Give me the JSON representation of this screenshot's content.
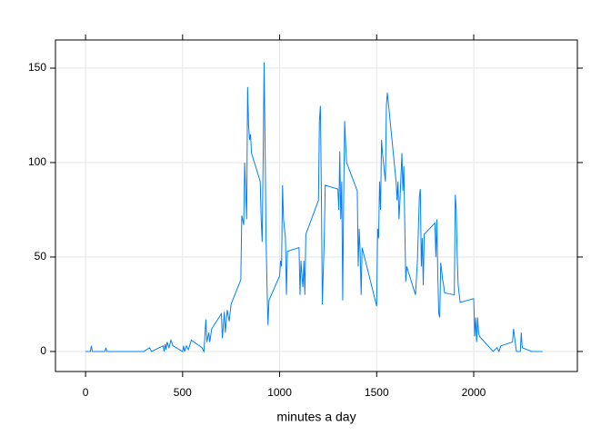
{
  "chart_data": {
    "type": "line",
    "xlabel": "minutes a day",
    "color": "#0080ff",
    "grid": true,
    "xlim": [
      -155,
      2534
    ],
    "ylim": [
      -10.6,
      164.9
    ],
    "xticks": [
      0,
      500,
      1000,
      1500,
      2000
    ],
    "yticks": [
      0,
      50,
      100,
      150
    ],
    "x": [
      0,
      25,
      30,
      35,
      100,
      105,
      110,
      150,
      200,
      300,
      330,
      340,
      400,
      405,
      410,
      415,
      420,
      430,
      440,
      450,
      500,
      505,
      510,
      520,
      530,
      545,
      600,
      610,
      620,
      625,
      635,
      640,
      650,
      700,
      705,
      715,
      720,
      730,
      740,
      750,
      800,
      805,
      815,
      820,
      830,
      835,
      840,
      845,
      850,
      855,
      900,
      905,
      910,
      915,
      920,
      925,
      930,
      935,
      940,
      945,
      1000,
      1005,
      1010,
      1015,
      1020,
      1030,
      1035,
      1040,
      1100,
      1105,
      1110,
      1115,
      1120,
      1125,
      1130,
      1135,
      1200,
      1205,
      1210,
      1215,
      1220,
      1230,
      1235,
      1300,
      1305,
      1310,
      1315,
      1320,
      1325,
      1330,
      1335,
      1340,
      1345,
      1400,
      1405,
      1410,
      1415,
      1420,
      1425,
      1500,
      1505,
      1510,
      1515,
      1520,
      1525,
      1530,
      1545,
      1550,
      1555,
      1600,
      1605,
      1610,
      1615,
      1620,
      1630,
      1635,
      1640,
      1645,
      1650,
      1655,
      1700,
      1710,
      1720,
      1725,
      1730,
      1735,
      1740,
      1745,
      1800,
      1805,
      1810,
      1815,
      1820,
      1825,
      1830,
      1840,
      1845,
      1850,
      1900,
      1905,
      1910,
      1915,
      1920,
      1930,
      2000,
      2005,
      2010,
      2015,
      2020,
      2025,
      2030,
      2100,
      2120,
      2130,
      2140,
      2200,
      2205,
      2210,
      2220,
      2240,
      2245,
      2250,
      2300,
      2355
    ],
    "values": [
      0,
      0,
      3,
      0,
      0,
      2,
      0,
      0,
      0,
      0,
      2,
      0,
      3,
      0,
      4,
      1,
      5,
      2,
      6,
      3,
      0,
      3,
      0,
      3,
      1,
      6,
      2,
      0,
      17,
      5,
      10,
      5,
      12,
      20,
      7,
      21,
      10,
      22,
      16,
      25,
      38,
      72,
      67,
      100,
      70,
      140,
      120,
      112,
      115,
      105,
      90,
      70,
      58,
      100,
      153,
      110,
      60,
      35,
      14,
      27,
      40,
      48,
      45,
      88,
      70,
      60,
      30,
      53,
      55,
      30,
      48,
      40,
      34,
      48,
      30,
      62,
      80,
      122,
      130,
      85,
      25,
      60,
      88,
      86,
      75,
      106,
      70,
      90,
      27,
      82,
      122,
      110,
      100,
      85,
      45,
      65,
      52,
      30,
      55,
      24,
      65,
      60,
      90,
      75,
      112,
      105,
      90,
      130,
      137,
      90,
      80,
      90,
      70,
      80,
      105,
      85,
      98,
      65,
      37,
      45,
      30,
      48,
      82,
      86,
      45,
      60,
      35,
      62,
      68,
      50,
      70,
      40,
      20,
      18,
      47,
      38,
      35,
      31,
      30,
      83,
      75,
      50,
      35,
      26,
      28,
      8,
      18,
      5,
      18,
      10,
      8,
      0,
      2,
      0,
      3,
      5,
      12,
      8,
      0,
      0,
      10,
      2,
      0,
      0
    ]
  }
}
